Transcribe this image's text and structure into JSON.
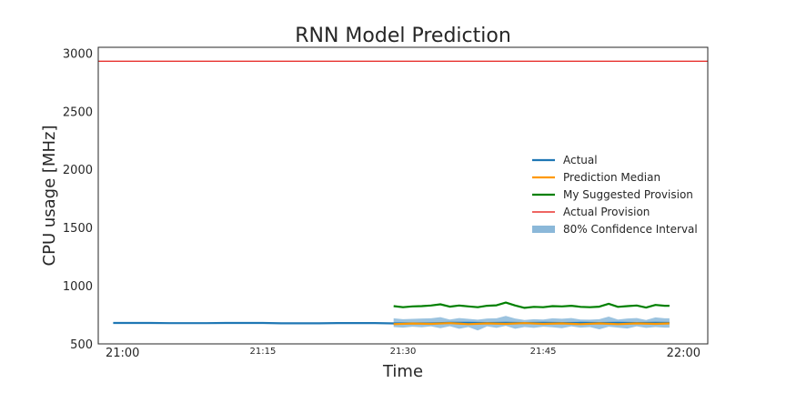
{
  "chart_data": {
    "type": "line",
    "title": "RNN Model Prediction",
    "xlabel": "Time",
    "ylabel": "CPU usage [MHz]",
    "ylim": [
      500,
      3050
    ],
    "yticks": [
      500,
      1000,
      1500,
      2000,
      2500,
      3000
    ],
    "xlim_minutes": [
      -2.6,
      62.6
    ],
    "xticks": [
      {
        "minute": 0,
        "label": "21:00",
        "size": "major"
      },
      {
        "minute": 15,
        "label": "21:15",
        "size": "minor"
      },
      {
        "minute": 30,
        "label": "21:30",
        "size": "minor"
      },
      {
        "minute": 45,
        "label": "21:45",
        "size": "minor"
      },
      {
        "minute": 60,
        "label": "22:00",
        "size": "major"
      }
    ],
    "grid": false,
    "legend_position": "right",
    "series": [
      {
        "name": "Actual",
        "color": "#1f77b4",
        "x": [
          -1,
          1,
          3,
          5,
          7,
          9,
          11,
          13,
          15,
          17,
          19,
          21,
          23,
          25,
          27,
          29,
          31,
          33,
          35,
          37,
          39,
          41,
          43,
          45,
          47,
          49,
          51,
          53,
          55,
          57,
          58.5
        ],
        "y": [
          680,
          680,
          680,
          678,
          678,
          678,
          680,
          680,
          680,
          677,
          677,
          677,
          679,
          679,
          679,
          676,
          676,
          676,
          681,
          681,
          679,
          681,
          679,
          681,
          679,
          681,
          679,
          681,
          679,
          681,
          680
        ]
      },
      {
        "name": "Prediction Median",
        "color": "#ff9900",
        "x": [
          29,
          31,
          33,
          35,
          37,
          39,
          41,
          43,
          45,
          47,
          49,
          51,
          53,
          55,
          57,
          58.5
        ],
        "y": [
          670,
          675,
          672,
          678,
          670,
          676,
          672,
          678,
          672,
          676,
          670,
          676,
          670,
          676,
          672,
          676
        ]
      },
      {
        "name": "My Suggested Provision",
        "color": "#008000",
        "x": [
          29,
          30,
          31,
          32,
          33,
          34,
          35,
          36,
          37,
          38,
          39,
          40,
          41,
          42,
          43,
          44,
          45,
          46,
          47,
          48,
          49,
          50,
          51,
          52,
          53,
          54,
          55,
          56,
          57,
          58,
          58.5
        ],
        "y": [
          825,
          815,
          822,
          825,
          830,
          840,
          820,
          830,
          822,
          815,
          828,
          832,
          855,
          830,
          810,
          818,
          815,
          825,
          822,
          828,
          818,
          815,
          820,
          845,
          818,
          825,
          830,
          812,
          835,
          828,
          828
        ]
      },
      {
        "name": "Actual Provision",
        "color": "#e8322e",
        "x": [
          -2.6,
          62.6
        ],
        "y": [
          2930,
          2930
        ]
      }
    ],
    "band": {
      "name": "80% Confidence Interval",
      "color": "#8bb8d9",
      "x": [
        29,
        30,
        31,
        32,
        33,
        34,
        35,
        36,
        37,
        38,
        39,
        40,
        41,
        42,
        43,
        44,
        45,
        46,
        47,
        48,
        49,
        50,
        51,
        52,
        53,
        54,
        55,
        56,
        57,
        58,
        58.5
      ],
      "upper": [
        720,
        712,
        715,
        718,
        720,
        730,
        710,
        722,
        715,
        708,
        718,
        720,
        740,
        718,
        705,
        712,
        710,
        720,
        716,
        722,
        710,
        708,
        712,
        735,
        710,
        718,
        722,
        705,
        728,
        720,
        720
      ],
      "lower": [
        645,
        640,
        648,
        642,
        650,
        635,
        652,
        630,
        645,
        615,
        650,
        638,
        655,
        630,
        645,
        638,
        648,
        642,
        635,
        650,
        640,
        645,
        625,
        648,
        640,
        632,
        650,
        638,
        645,
        640,
        640
      ]
    }
  }
}
